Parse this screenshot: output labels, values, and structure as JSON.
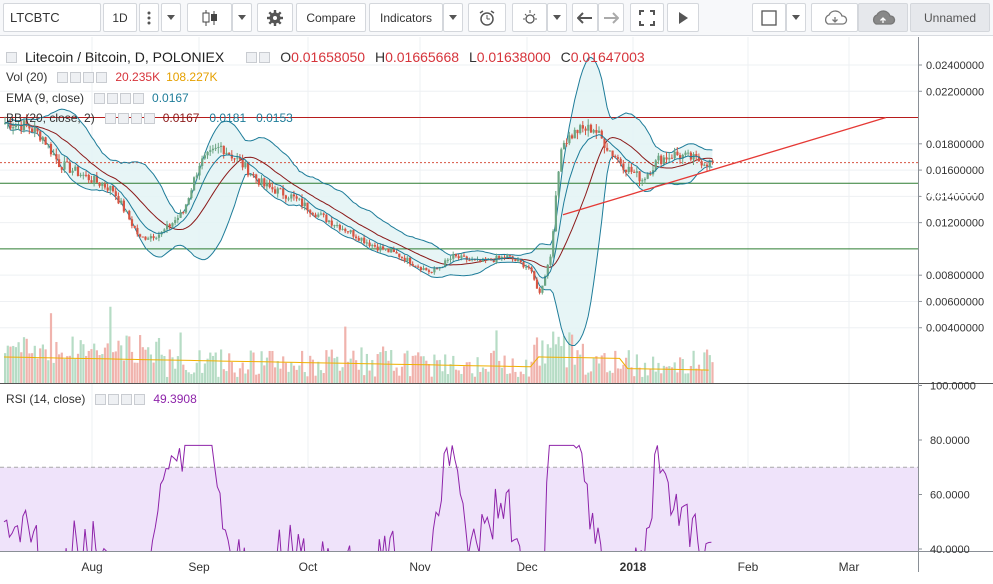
{
  "toolbar": {
    "symbol": "LTCBTC",
    "interval": "1D",
    "compare_label": "Compare",
    "indicators_label": "Indicators",
    "layout_name": "Unnamed"
  },
  "legend": {
    "title": "Litecoin / Bitcoin, D, POLONIEX",
    "o_label": "O",
    "o_value": "0.01658050",
    "h_label": "H",
    "h_value": "0.01665668",
    "l_label": "L",
    "l_value": "0.01638000",
    "c_label": "C",
    "c_value": "0.01647003",
    "vol_name": "Vol (20)",
    "vol_value": "20.235K",
    "vol_ma": "108.227K",
    "ema_name": "EMA (9, close)",
    "ema_value": "0.0167",
    "bb_name": "BB (20, close, 2)",
    "bb_values": [
      "0.0167",
      "0.0181",
      "0.0153"
    ],
    "rsi_name": "RSI (14, close)",
    "rsi_value": "49.3908"
  },
  "price_axis": {
    "ticks": [
      "0.02400000",
      "0.02200000",
      "0.01800000",
      "0.01600000",
      "0.01400000",
      "0.01200000",
      "0.00800000",
      "0.00600000",
      "0.00400000"
    ],
    "tags": [
      {
        "text": "0.02000000",
        "color": "#b71c1c"
      },
      {
        "text": "0.01500000",
        "color": "#2e7d32"
      },
      {
        "text": "0.01000000",
        "color": "#2e7d32"
      }
    ]
  },
  "rsi_axis": {
    "ticks": [
      "100.0000",
      "80.0000",
      "60.0000",
      "40.0000"
    ]
  },
  "time_axis": {
    "labels": [
      "Aug",
      "Sep",
      "Oct",
      "Nov",
      "Dec",
      "2018",
      "Feb",
      "Mar"
    ]
  },
  "colors": {
    "up": "#6ba583",
    "down": "#d75442",
    "bb": "#1e7c99",
    "ema": "#8b1a1a",
    "vol_ma": "#f0b000",
    "rsi": "#8e24aa",
    "rsi_band": "#efe3fa",
    "level_red": "#b71c1c",
    "level_green": "#2e7d32",
    "trend": "#e53935"
  },
  "chart_data": {
    "type": "candlestick",
    "interval": "1D",
    "ylim": [
      0.002,
      0.0255
    ],
    "x": [
      "Aug",
      "Sep",
      "Oct",
      "Nov",
      "Dec",
      "2018",
      "Feb",
      "Mar"
    ],
    "close_approx": [
      {
        "x": "Aug",
        "y": 0.015
      },
      {
        "x": "Sep",
        "y": 0.017
      },
      {
        "x": "Oct",
        "y": 0.013
      },
      {
        "x": "Nov",
        "y": 0.008
      },
      {
        "x": "Dec",
        "y": 0.006
      },
      {
        "x": "2018",
        "y": 0.0165
      }
    ],
    "horizontal_levels": [
      0.02,
      0.015,
      0.01
    ],
    "series": [
      {
        "name": "Vol (20)",
        "last": "20.235K",
        "ma": "108.227K"
      },
      {
        "name": "EMA (9, close)",
        "last": 0.0167
      },
      {
        "name": "BB (20, close, 2)",
        "last": [
          0.0167,
          0.0181,
          0.0153
        ]
      },
      {
        "name": "RSI (14, close)",
        "last": 49.3908,
        "ylim": [
          38,
          100
        ],
        "band": [
          30,
          70
        ]
      }
    ]
  }
}
